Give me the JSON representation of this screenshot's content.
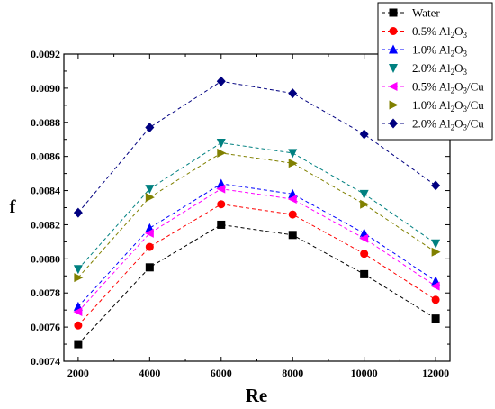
{
  "chart_data": {
    "type": "line",
    "xlabel": "Re",
    "ylabel": "f",
    "x": [
      2000,
      4000,
      6000,
      8000,
      10000,
      12000
    ],
    "x_tick_labels": [
      "2000",
      "4000",
      "6000",
      "8000",
      "10000",
      "12000"
    ],
    "xlim": [
      1600,
      12400
    ],
    "ylim": [
      0.0074,
      0.0092
    ],
    "y_ticks": [
      0.0074,
      0.0076,
      0.0078,
      0.008,
      0.0082,
      0.0084,
      0.0086,
      0.0088,
      0.009,
      0.0092
    ],
    "y_tick_labels": [
      "0.0074",
      "0.0076",
      "0.0078",
      "0.0080",
      "0.0082",
      "0.0084",
      "0.0086",
      "0.0088",
      "0.0090",
      "0.0092"
    ],
    "grid": false,
    "legend_position": "top-right",
    "series": [
      {
        "name": "Water",
        "name_parts": [
          "Water"
        ],
        "color": "#000000",
        "marker": "square",
        "values": [
          0.0075,
          0.00795,
          0.0082,
          0.00814,
          0.00791,
          0.00765
        ]
      },
      {
        "name": "0.5% Al2O3",
        "name_parts": [
          "0.5% Al",
          "2",
          "O",
          "3"
        ],
        "color": "#ff0000",
        "marker": "circle",
        "values": [
          0.00761,
          0.00807,
          0.00832,
          0.00826,
          0.00803,
          0.00776
        ]
      },
      {
        "name": "1.0% Al2O3",
        "name_parts": [
          "1.0% Al",
          "2",
          "O",
          "3"
        ],
        "color": "#0000ff",
        "marker": "triangle-up",
        "values": [
          0.00772,
          0.00818,
          0.00844,
          0.00838,
          0.00815,
          0.00787
        ]
      },
      {
        "name": "2.0% Al2O3",
        "name_parts": [
          "2.0% Al",
          "2",
          "O",
          "3"
        ],
        "color": "#008080",
        "marker": "triangle-down",
        "values": [
          0.00794,
          0.00841,
          0.00868,
          0.00862,
          0.00838,
          0.00809
        ]
      },
      {
        "name": "0.5% Al2O3/Cu",
        "name_parts": [
          "0.5% Al",
          "2",
          "O",
          "3",
          "/Cu"
        ],
        "color": "#ff00ff",
        "marker": "triangle-left",
        "values": [
          0.00769,
          0.00815,
          0.00841,
          0.00835,
          0.00812,
          0.00784
        ]
      },
      {
        "name": "1.0% Al2O3/Cu",
        "name_parts": [
          "1.0% Al",
          "2",
          "O",
          "3",
          "/Cu"
        ],
        "color": "#808000",
        "marker": "triangle-right",
        "values": [
          0.00789,
          0.00836,
          0.00862,
          0.00856,
          0.00832,
          0.00804
        ]
      },
      {
        "name": "2.0% Al2O3/Cu",
        "name_parts": [
          "2.0% Al",
          "2",
          "O",
          "3",
          "/Cu"
        ],
        "color": "#000080",
        "marker": "diamond",
        "values": [
          0.00827,
          0.00877,
          0.00904,
          0.00897,
          0.00873,
          0.00843
        ]
      }
    ]
  }
}
